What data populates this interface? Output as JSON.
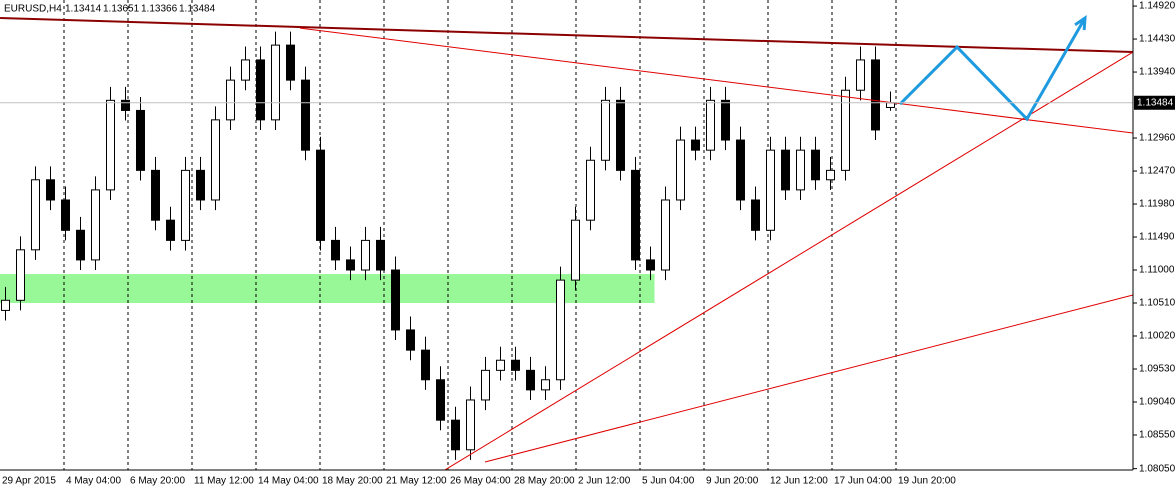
{
  "chart_data": {
    "type": "candlestick",
    "title": "EURUSD,H4",
    "open": [
      1.104,
      1.1055,
      1.113,
      1.1234,
      1.1204,
      1.1159,
      1.1115,
      1.1219,
      1.1352,
      1.1337,
      1.1248,
      1.1174,
      1.1144,
      1.1248,
      1.1204,
      1.1323,
      1.1382,
      1.1412,
      1.1323,
      1.1434,
      1.1382,
      1.1278,
      1.1144,
      1.1115,
      1.11,
      1.1144,
      1.11,
      1.1011,
      1.0981,
      1.0937,
      1.0877,
      1.0833,
      1.0907,
      1.0951,
      1.0966,
      1.0951,
      1.0922,
      1.0937,
      1.1085,
      1.1174,
      1.1263,
      1.1352,
      1.1248,
      1.1115,
      1.11,
      1.1204,
      1.1293,
      1.1278,
      1.1352,
      1.1293,
      1.1204,
      1.1159,
      1.1278,
      1.1219,
      1.1278,
      1.1234,
      1.1248,
      1.1367,
      1.1412,
      1.13414
    ],
    "high": [
      1.1075,
      1.115,
      1.1254,
      1.1254,
      1.1224,
      1.1179,
      1.1239,
      1.1372,
      1.1372,
      1.1357,
      1.1268,
      1.1194,
      1.1268,
      1.1268,
      1.1343,
      1.1402,
      1.1432,
      1.1432,
      1.1454,
      1.1454,
      1.1402,
      1.1298,
      1.1164,
      1.1135,
      1.1164,
      1.1164,
      1.112,
      1.1031,
      1.1001,
      1.0957,
      1.0897,
      1.0927,
      1.0971,
      1.0986,
      1.0986,
      1.0971,
      1.0957,
      1.1105,
      1.1194,
      1.1283,
      1.1372,
      1.1372,
      1.1268,
      1.1135,
      1.1224,
      1.1313,
      1.1313,
      1.1372,
      1.1372,
      1.1313,
      1.1224,
      1.1298,
      1.1298,
      1.1298,
      1.1298,
      1.1268,
      1.1387,
      1.1432,
      1.1432,
      1.13651
    ],
    "low": [
      1.1025,
      1.104,
      1.1115,
      1.1189,
      1.1144,
      1.11,
      1.11,
      1.1204,
      1.1322,
      1.1233,
      1.1159,
      1.1129,
      1.1129,
      1.1189,
      1.1189,
      1.1308,
      1.1367,
      1.1308,
      1.1308,
      1.1367,
      1.1263,
      1.1129,
      1.11,
      1.1085,
      1.1085,
      1.1085,
      1.0996,
      1.0966,
      1.0922,
      1.0862,
      1.0818,
      1.0818,
      1.0892,
      1.0936,
      1.0936,
      1.0907,
      1.0907,
      1.0922,
      1.107,
      1.1159,
      1.1248,
      1.1233,
      1.11,
      1.1085,
      1.1085,
      1.1189,
      1.1263,
      1.1263,
      1.1278,
      1.1189,
      1.1144,
      1.1144,
      1.1204,
      1.1204,
      1.1219,
      1.1219,
      1.1233,
      1.1352,
      1.1293,
      1.13366
    ],
    "close": [
      1.1055,
      1.113,
      1.1234,
      1.1204,
      1.1159,
      1.1115,
      1.1219,
      1.1352,
      1.1337,
      1.1248,
      1.1174,
      1.1144,
      1.1248,
      1.1204,
      1.1323,
      1.1382,
      1.1412,
      1.1323,
      1.1434,
      1.1382,
      1.1278,
      1.1144,
      1.1115,
      1.11,
      1.1144,
      1.11,
      1.1011,
      1.0981,
      1.0937,
      1.0877,
      1.0833,
      1.0907,
      1.0951,
      1.0966,
      1.0951,
      1.0922,
      1.0937,
      1.1085,
      1.1174,
      1.1263,
      1.1352,
      1.1248,
      1.1115,
      1.11,
      1.1204,
      1.1293,
      1.1278,
      1.1352,
      1.1293,
      1.1204,
      1.1159,
      1.1278,
      1.1219,
      1.1278,
      1.1234,
      1.1248,
      1.1367,
      1.1412,
      1.1308,
      1.13484
    ],
    "x_labels": [
      "29 Apr 2015",
      "4 May 04:00",
      "6 May 20:00",
      "11 May 12:00",
      "14 May 04:00",
      "18 May 20:00",
      "21 May 12:00",
      "26 May 04:00",
      "28 May 20:00",
      "2 Jun 12:00",
      "5 Jun 04:00",
      "9 Jun 20:00",
      "12 Jun 12:00",
      "17 Jun 04:00",
      "19 Jun 20:00"
    ],
    "ylim": [
      1.0803,
      1.1501
    ],
    "yticks": [
      {
        "value": 1.1492,
        "label": "1.14920"
      },
      {
        "value": 1.1443,
        "label": "1.14430"
      },
      {
        "value": 1.1394,
        "label": "1.13940"
      },
      {
        "value": 1.1296,
        "label": "1.12960"
      },
      {
        "value": 1.1247,
        "label": "1.12470"
      },
      {
        "value": 1.1198,
        "label": "1.11980"
      },
      {
        "value": 1.1149,
        "label": "1.11490"
      },
      {
        "value": 1.11,
        "label": "1.11000"
      },
      {
        "value": 1.1051,
        "label": "1.10510"
      },
      {
        "value": 1.1002,
        "label": "1.10020"
      },
      {
        "value": 1.0953,
        "label": "1.09530"
      },
      {
        "value": 1.0904,
        "label": "1.09040"
      },
      {
        "value": 1.0855,
        "label": "1.08550"
      },
      {
        "value": 1.0805,
        "label": "1.08050"
      }
    ],
    "zone": {
      "low": 1.1051,
      "high": 1.1094,
      "end": 43.3,
      "color": "#98f898"
    },
    "lines": [
      {
        "color": "#8b0000",
        "width": 2,
        "points": [
          [
            -0.33,
            1.14742
          ],
          [
            75.2,
            1.14237
          ]
        ]
      },
      {
        "color": "#e00000",
        "width": 1,
        "points": [
          [
            19.67,
            1.14593
          ],
          [
            75.2,
            1.13034
          ]
        ]
      },
      {
        "color": "#e00000",
        "width": 1,
        "points": [
          [
            29.33,
            1.08031
          ],
          [
            75.2,
            1.14237
          ]
        ]
      },
      {
        "color": "#e00000",
        "width": 1,
        "points": [
          [
            32,
            1.08149
          ],
          [
            75.2,
            1.10629
          ]
        ]
      },
      {
        "color": "#1e9be0",
        "width": 3,
        "arrow": true,
        "points": [
          [
            59.67,
            1.13465
          ],
          [
            63.47,
            1.14311
          ],
          [
            68.13,
            1.13242
          ],
          [
            72,
            1.14742
          ]
        ]
      }
    ],
    "bull_color": "#ffffff",
    "bear_color": "#000000"
  }
}
